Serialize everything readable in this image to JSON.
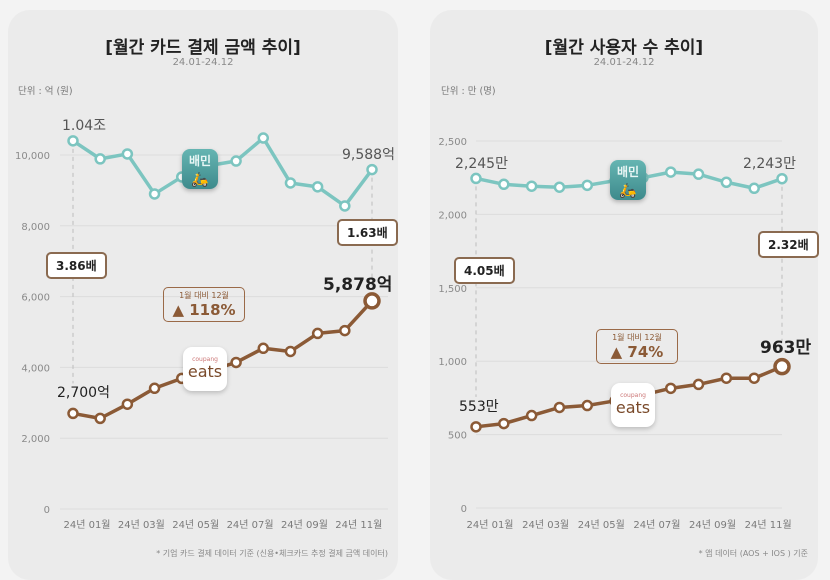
{
  "colors": {
    "baemin": "#7cc5c0",
    "coupang": "#8b5a36"
  },
  "chart_data": [
    {
      "type": "line",
      "title": "[월간 카드 결제 금액 추이]",
      "subtitle": "24.01-24.12",
      "unit_label": "단위 : 억 (원)",
      "note": "* 기업 카드 결제 데이터 기준 (신용•체크카드 추정 결제 금액 데이터)",
      "x": [
        "24년 01월",
        "24년 02월",
        "24년 03월",
        "24년 04월",
        "24년 05월",
        "24년 06월",
        "24년 07월",
        "24년 08월",
        "24년 09월",
        "24년 10월",
        "24년 11월",
        "24년 12월"
      ],
      "x_tick_labels": [
        "24년 01월",
        "24년 03월",
        "24년 05월",
        "24년 07월",
        "24년 09월",
        "24년 11월"
      ],
      "y_ticks": [
        "0",
        "2,000",
        "4,000",
        "6,000",
        "8,000",
        "10,000"
      ],
      "ylim": [
        0,
        11000
      ],
      "series": [
        {
          "name": "배민",
          "values": [
            10400,
            9890,
            10030,
            8900,
            9380,
            9700,
            9830,
            10480,
            9210,
            9100,
            8560,
            9588
          ]
        },
        {
          "name": "쿠팡이츠",
          "values": [
            2700,
            2560,
            2960,
            3410,
            3690,
            3900,
            4140,
            4540,
            4450,
            4960,
            5040,
            5878
          ]
        }
      ],
      "annotations": {
        "baemin_start": "1.04조",
        "baemin_end": "9,588억",
        "coupang_start": "2,700억",
        "coupang_end": "5,878억",
        "ratio_start": "3.86배",
        "ratio_end": "1.63배",
        "growth_caption": "1월 대비 12월",
        "growth_value": "▲ 118%"
      }
    },
    {
      "type": "line",
      "title": "[월간 사용자 수 추이]",
      "subtitle": "24.01-24.12",
      "unit_label": "단위 : 만 (명)",
      "note": "* 앱 데이터 (AOS + IOS ) 기준",
      "x": [
        "24년 01월",
        "24년 02월",
        "24년 03월",
        "24년 04월",
        "24년 05월",
        "24년 06월",
        "24년 07월",
        "24년 08월",
        "24년 09월",
        "24년 10월",
        "24년 11월",
        "24년 12월"
      ],
      "x_tick_labels": [
        "24년 01월",
        "24년 03월",
        "24년 05월",
        "24년 07월",
        "24년 09월",
        "24년 11월"
      ],
      "y_ticks": [
        "0",
        "500",
        "1,000",
        "1,500",
        "2,000",
        "2,500"
      ],
      "ylim": [
        0,
        2500
      ],
      "series": [
        {
          "name": "배민",
          "values": [
            2245,
            2205,
            2192,
            2185,
            2198,
            2230,
            2250,
            2288,
            2274,
            2219,
            2178,
            2243
          ]
        },
        {
          "name": "쿠팡이츠",
          "values": [
            553,
            575,
            630,
            685,
            698,
            730,
            770,
            815,
            842,
            884,
            884,
            963
          ]
        }
      ],
      "annotations": {
        "baemin_start": "2,245만",
        "baemin_end": "2,243만",
        "coupang_start": "553만",
        "coupang_end": "963만",
        "ratio_start": "4.05배",
        "ratio_end": "2.32배",
        "growth_caption": "1월 대비 12월",
        "growth_value": "▲ 74%"
      }
    }
  ],
  "logos": {
    "baemin": "배민",
    "coupang_small": "coupang",
    "coupang_big": "eats"
  }
}
